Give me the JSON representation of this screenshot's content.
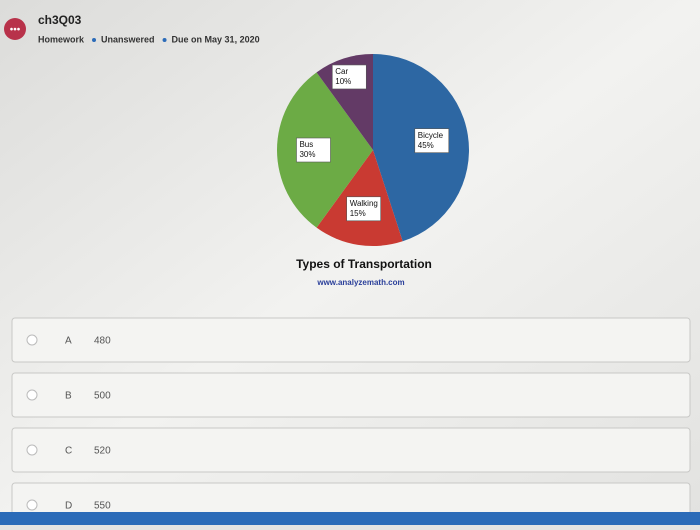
{
  "header": {
    "title": "ch3Q03",
    "meta": [
      "Homework",
      "Unanswered",
      "Due on May 31, 2020"
    ]
  },
  "chart_data": {
    "type": "pie",
    "title": "Types of Transportation",
    "subtitle": "www.analyzemath.com",
    "categories": [
      "Bicycle",
      "Walking",
      "Bus",
      "Car"
    ],
    "values": [
      45,
      15,
      30,
      10
    ],
    "value_labels": [
      "45%",
      "15%",
      "30%",
      "10%"
    ],
    "colors": [
      "#2d67a3",
      "#c93a32",
      "#6cab45",
      "#633a66"
    ]
  },
  "options": [
    {
      "letter": "A",
      "text": "480"
    },
    {
      "letter": "B",
      "text": "500"
    },
    {
      "letter": "C",
      "text": "520"
    },
    {
      "letter": "D",
      "text": "550"
    }
  ]
}
